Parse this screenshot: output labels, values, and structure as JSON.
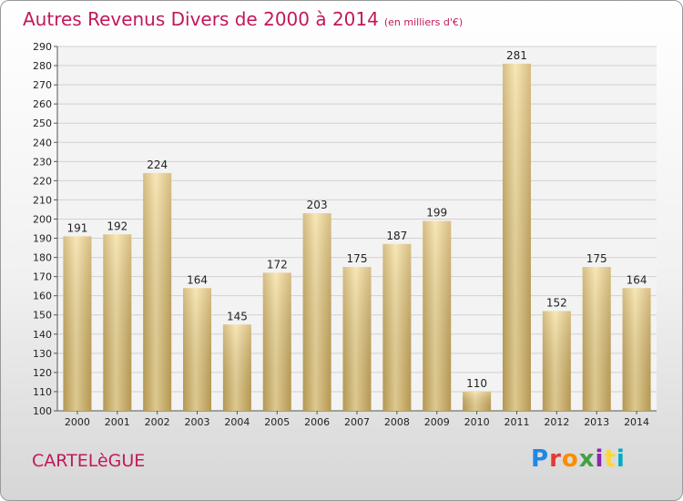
{
  "header": {
    "title": "Autres Revenus Divers de 2000 à 2014",
    "subtitle": "(en milliers d'€)"
  },
  "footer": {
    "town": "CARTELèGUE",
    "logo": "Proxiti"
  },
  "colors": {
    "accent": "#c2185b",
    "bar_light": "#f3dc9a",
    "bar_dark": "#c6a558"
  },
  "chart_data": {
    "type": "bar",
    "title": "Autres Revenus Divers de 2000 à 2014",
    "subtitle": "(en milliers d'€)",
    "xlabel": "",
    "ylabel": "",
    "categories": [
      "2000",
      "2001",
      "2002",
      "2003",
      "2004",
      "2005",
      "2006",
      "2007",
      "2008",
      "2009",
      "2010",
      "2011",
      "2012",
      "2013",
      "2014"
    ],
    "values": [
      191,
      192,
      224,
      164,
      145,
      172,
      203,
      175,
      187,
      199,
      110,
      281,
      152,
      175,
      164
    ],
    "ylim": [
      100,
      290
    ],
    "yticks": [
      100,
      110,
      120,
      130,
      140,
      150,
      160,
      170,
      180,
      190,
      200,
      210,
      220,
      230,
      240,
      250,
      260,
      270,
      280,
      290
    ],
    "grid": true,
    "legend": "none"
  }
}
